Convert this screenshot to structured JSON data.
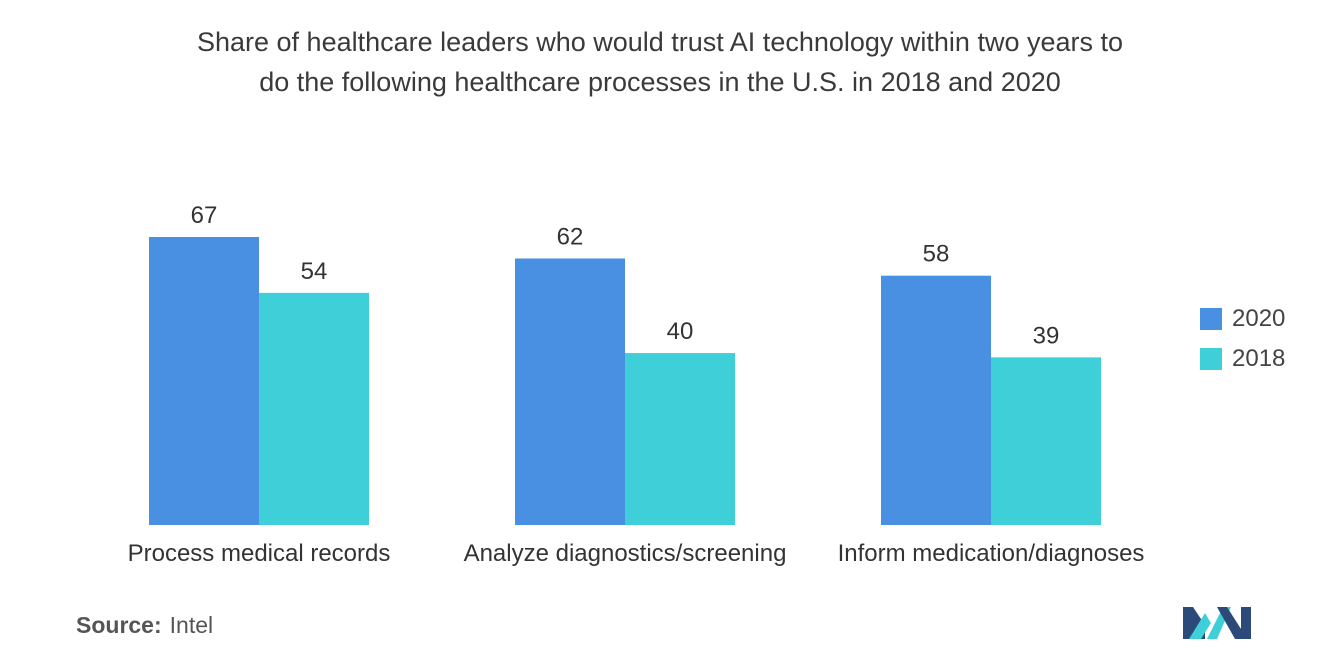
{
  "chart_data": {
    "type": "bar",
    "title_lines": [
      "Share of healthcare leaders who would trust AI technology within two years to",
      "do the following healthcare processes in the U.S. in 2018 and 2020"
    ],
    "categories": [
      "Process medical records",
      "Analyze diagnostics/screening",
      "Inform medication/diagnoses"
    ],
    "series": [
      {
        "name": "2020",
        "values": [
          67,
          62,
          58
        ],
        "color": "#4a90e2"
      },
      {
        "name": "2018",
        "values": [
          54,
          40,
          39
        ],
        "color": "#3ecfd9"
      }
    ],
    "ylim": [
      0,
      67
    ],
    "xlabel": "",
    "ylabel": "",
    "legend_position": "right"
  },
  "source": {
    "label": "Source:",
    "value": "Intel"
  },
  "colors": {
    "logo_dark": "#2b4a7a",
    "logo_light": "#3ecfd9"
  }
}
